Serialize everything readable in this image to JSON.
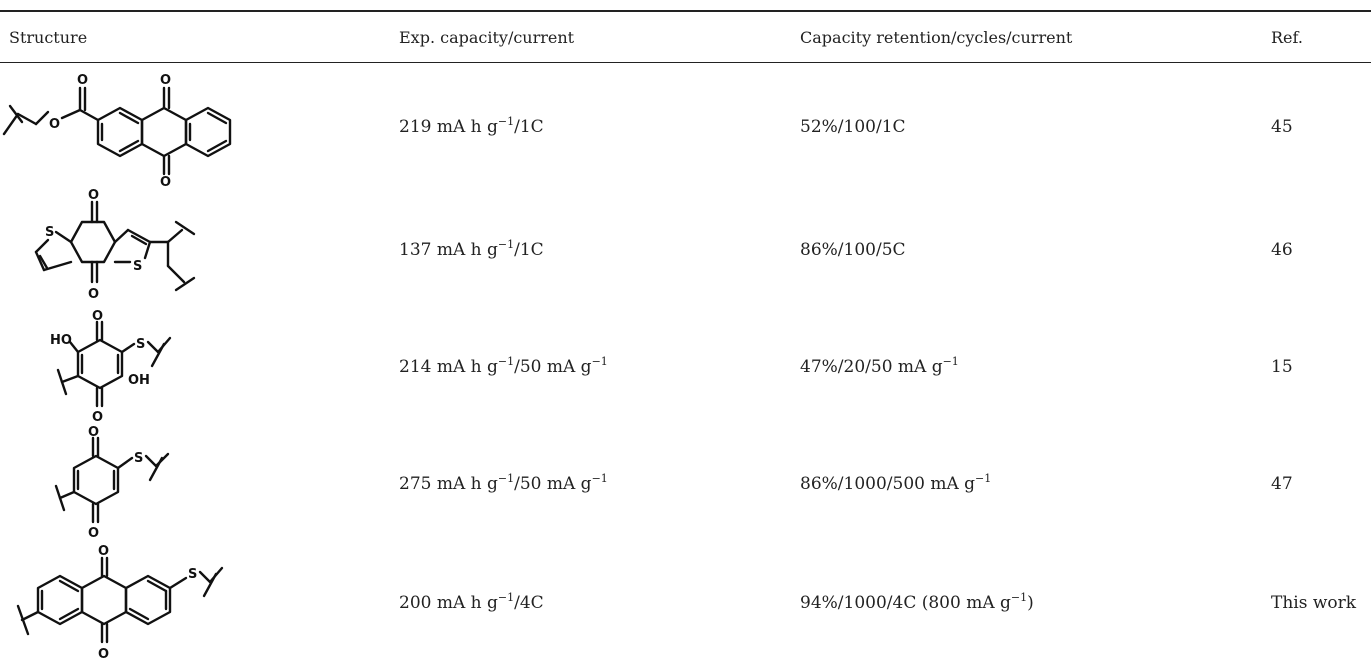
{
  "table": {
    "headers": {
      "structure": "Structure",
      "capacity": "Exp. capacity/current",
      "retention": "Capacity retention/cycles/current",
      "ref": "Ref."
    },
    "rows": [
      {
        "structure_icon": "anthraquinone-ester-polymer-structure",
        "capacity": {
          "a": "219 mA h g",
          "a_sup": "−1",
          "a_tail": "/1C",
          "b": "",
          "b_sup": ""
        },
        "retention": {
          "main": "52%/100/1C",
          "sup": "",
          "tail": ""
        },
        "ref": "45"
      },
      {
        "structure_icon": "benzodithiophenequinone-polymer-structure",
        "capacity": {
          "a": "137 mA h g",
          "a_sup": "−1",
          "a_tail": "/1C",
          "b": "",
          "b_sup": ""
        },
        "retention": {
          "main": "86%/100/5C",
          "sup": "",
          "tail": ""
        },
        "ref": "46"
      },
      {
        "structure_icon": "dihydroxybenzoquinone-thioether-polymer-structure",
        "capacity": {
          "a": "214 mA h g",
          "a_sup": "−1",
          "a_tail": "/50 mA g",
          "b": "",
          "b_sup": "−1"
        },
        "retention": {
          "main": "47%/20/50 mA g",
          "sup": "−1",
          "tail": ""
        },
        "ref": "15"
      },
      {
        "structure_icon": "benzoquinone-thioether-polymer-structure",
        "capacity": {
          "a": "275 mA h g",
          "a_sup": "−1",
          "a_tail": "/50 mA g",
          "b": "",
          "b_sup": "−1"
        },
        "retention": {
          "main": "86%/1000/500 mA g",
          "sup": "−1",
          "tail": ""
        },
        "ref": "47"
      },
      {
        "structure_icon": "anthraquinone-thioether-polymer-structure",
        "capacity": {
          "a": "200 mA h g",
          "a_sup": "−1",
          "a_tail": "/4C",
          "b": "",
          "b_sup": ""
        },
        "retention": {
          "main": "94%/1000/4C (800 mA g",
          "sup": "−1",
          "tail": ")"
        },
        "ref": "This work"
      }
    ]
  },
  "atom_labels": {
    "oxygen": "O",
    "sulfur": "S",
    "hydroxyl_left": "HO",
    "hydroxyl_right": "OH"
  }
}
